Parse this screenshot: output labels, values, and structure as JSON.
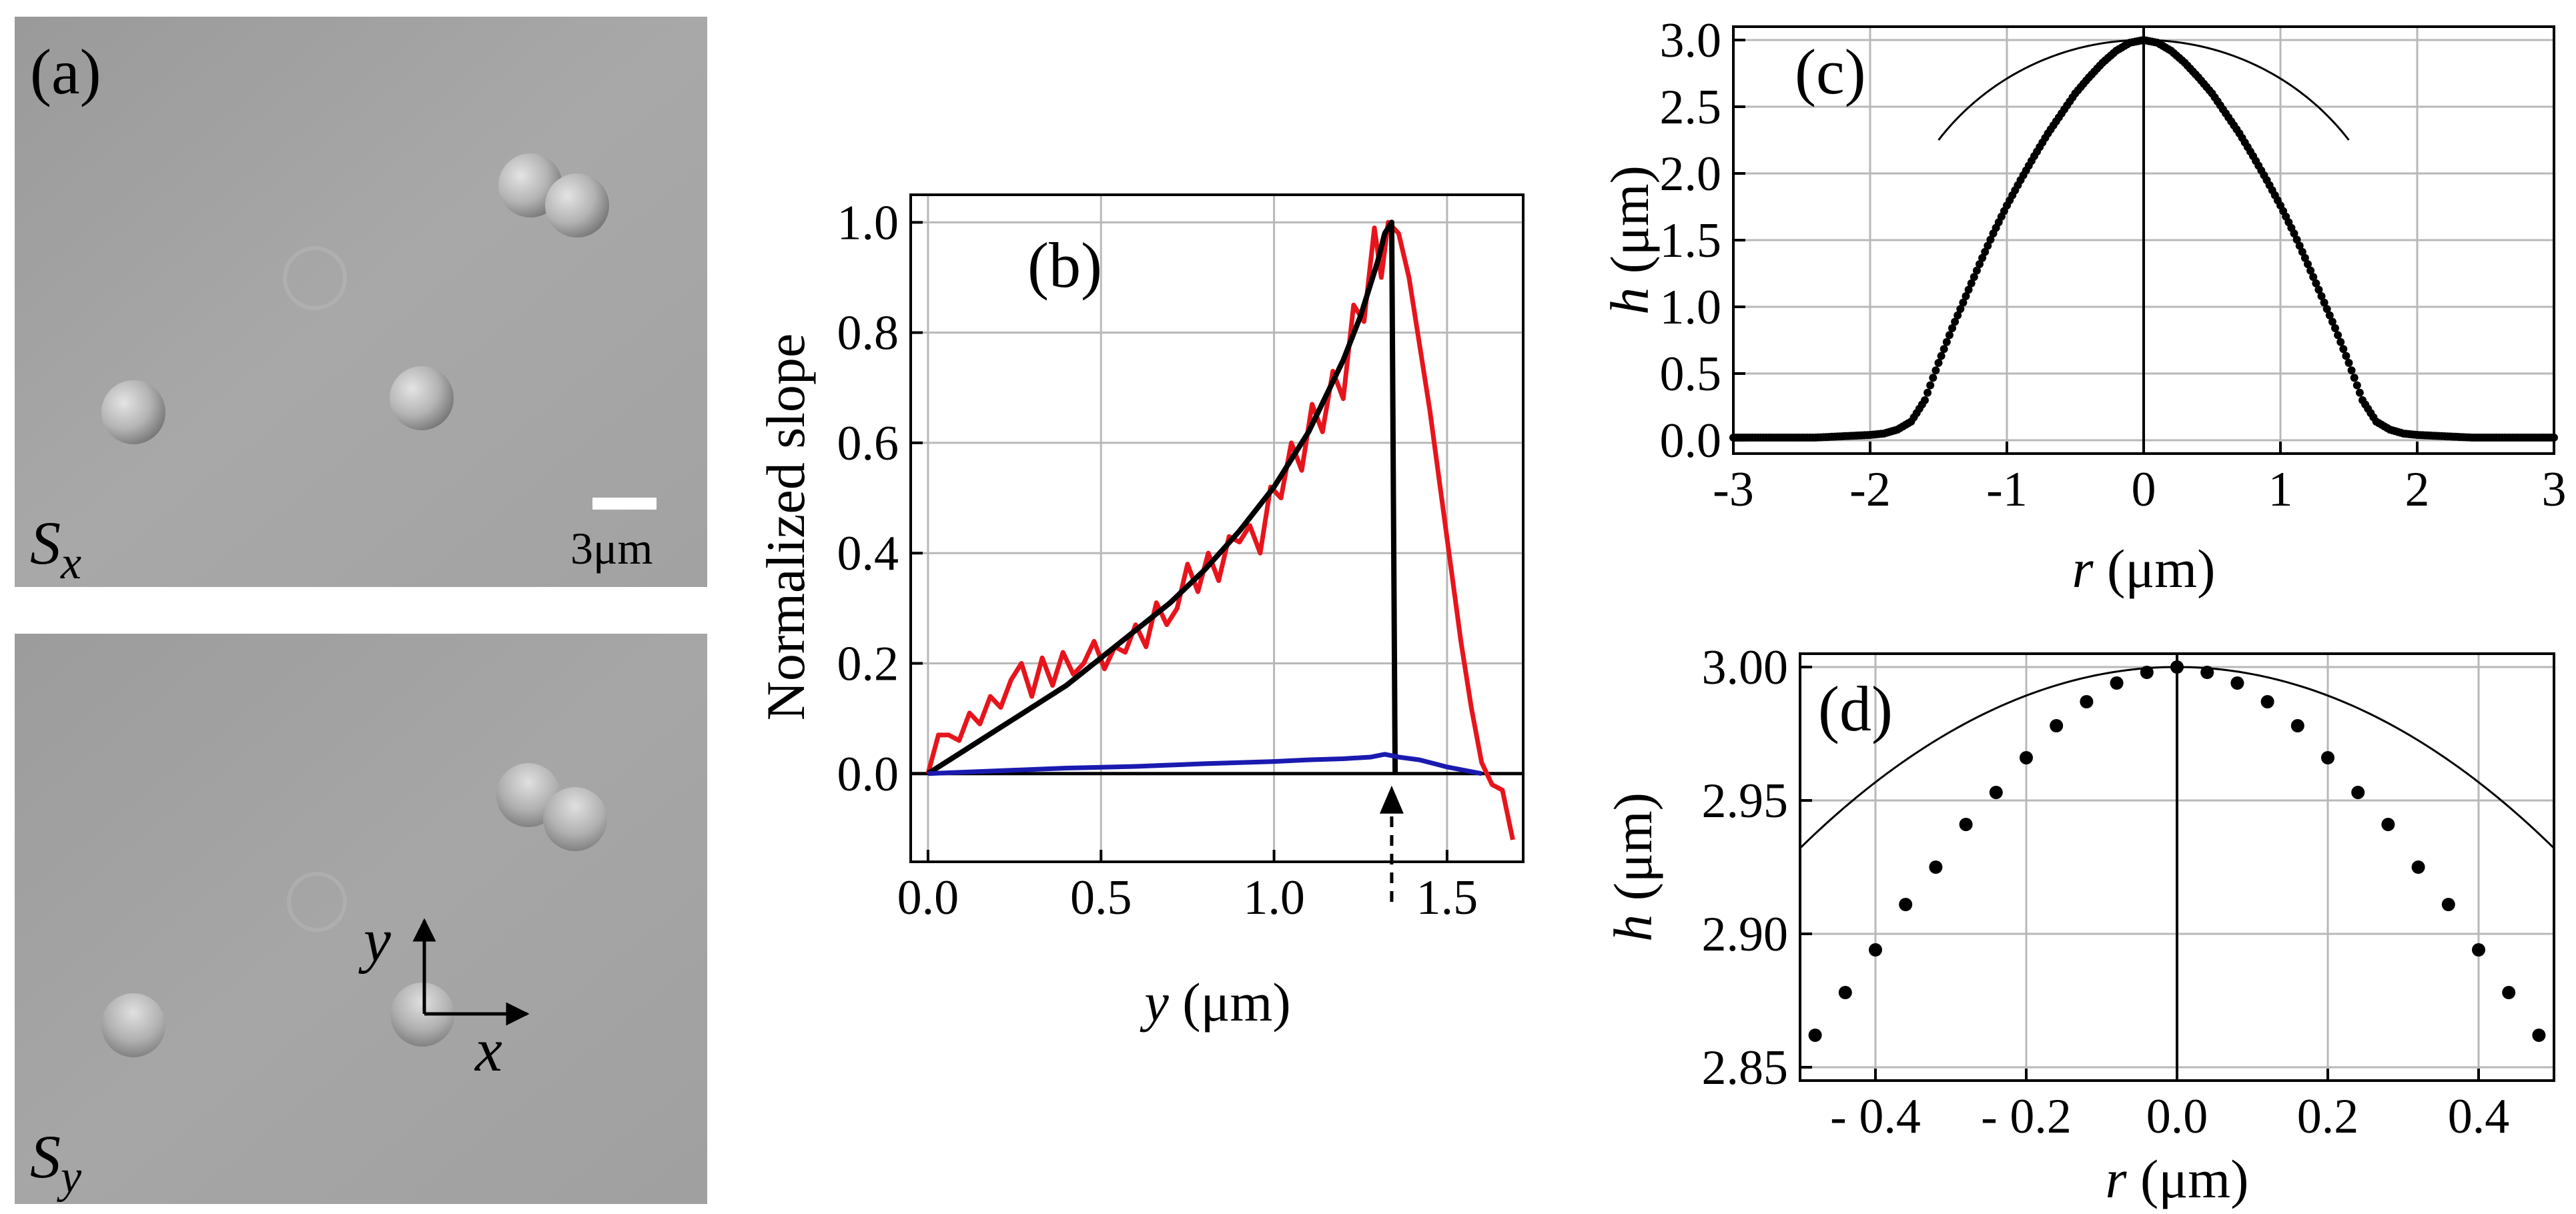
{
  "panel_a": {
    "label": "(a)",
    "sx_label": "S",
    "sx_sub": "x",
    "sy_label": "S",
    "sy_sub": "y",
    "scale_text": "3μm",
    "axis_y": "y",
    "axis_x": "x"
  },
  "panel_b": {
    "label": "(b)",
    "ylabel": "Normalized slope",
    "xlabel_var": "y",
    "xlabel_unit": "(μm)"
  },
  "panel_c": {
    "label": "(c)",
    "ylabel_var": "h",
    "ylabel_unit": "(μm)",
    "xlabel_var": "r",
    "xlabel_unit": "(μm)"
  },
  "panel_d": {
    "label": "(d)",
    "ylabel_var": "h",
    "ylabel_unit": "(μm)",
    "xlabel_var": "r",
    "xlabel_unit": "(μm)"
  },
  "chart_data": [
    {
      "id": "b",
      "type": "line",
      "xlabel": "y (μm)",
      "ylabel": "Normalized slope",
      "xlim": [
        -0.05,
        1.72
      ],
      "ylim": [
        -0.16,
        1.05
      ],
      "xticks": [
        0.0,
        0.5,
        1.0,
        1.5
      ],
      "xtick_labels": [
        "0.0",
        "0.5",
        "1.0",
        "1.5"
      ],
      "yticks": [
        0.0,
        0.2,
        0.4,
        0.6,
        0.8,
        1.0
      ],
      "ytick_labels": [
        "0.0",
        "0.2",
        "0.4",
        "0.6",
        "0.8",
        "1.0"
      ],
      "grid": true,
      "arrow_at_x": 1.34,
      "series": [
        {
          "color": "#e8141c",
          "x": [
            0.0,
            0.03,
            0.06,
            0.09,
            0.12,
            0.15,
            0.18,
            0.21,
            0.24,
            0.27,
            0.3,
            0.33,
            0.36,
            0.39,
            0.42,
            0.45,
            0.48,
            0.51,
            0.54,
            0.57,
            0.6,
            0.63,
            0.66,
            0.69,
            0.72,
            0.75,
            0.78,
            0.81,
            0.84,
            0.87,
            0.9,
            0.93,
            0.96,
            0.99,
            1.02,
            1.05,
            1.08,
            1.11,
            1.14,
            1.17,
            1.2,
            1.23,
            1.26,
            1.29,
            1.31,
            1.33,
            1.36,
            1.39,
            1.42,
            1.45,
            1.48,
            1.51,
            1.54,
            1.57,
            1.6,
            1.63,
            1.66,
            1.69
          ],
          "values": [
            0.0,
            0.07,
            0.07,
            0.06,
            0.11,
            0.09,
            0.14,
            0.12,
            0.17,
            0.2,
            0.14,
            0.21,
            0.16,
            0.22,
            0.18,
            0.2,
            0.24,
            0.19,
            0.23,
            0.22,
            0.27,
            0.23,
            0.31,
            0.27,
            0.3,
            0.38,
            0.33,
            0.4,
            0.35,
            0.43,
            0.42,
            0.45,
            0.4,
            0.52,
            0.5,
            0.6,
            0.55,
            0.67,
            0.62,
            0.73,
            0.68,
            0.85,
            0.82,
            0.99,
            0.9,
            1.0,
            0.98,
            0.9,
            0.78,
            0.66,
            0.52,
            0.38,
            0.24,
            0.12,
            0.02,
            -0.02,
            -0.03,
            -0.12
          ]
        },
        {
          "color": "#000000",
          "x": [
            0.0,
            0.1,
            0.2,
            0.3,
            0.4,
            0.5,
            0.6,
            0.7,
            0.8,
            0.9,
            1.0,
            1.1,
            1.2,
            1.25,
            1.3,
            1.32,
            1.34,
            1.35
          ],
          "values": [
            0.0,
            0.04,
            0.08,
            0.12,
            0.16,
            0.21,
            0.26,
            0.31,
            0.37,
            0.44,
            0.52,
            0.62,
            0.75,
            0.83,
            0.93,
            0.98,
            1.0,
            0.0
          ]
        },
        {
          "color": "#1a1ab0",
          "x": [
            0.0,
            0.2,
            0.4,
            0.6,
            0.8,
            1.0,
            1.1,
            1.2,
            1.28,
            1.32,
            1.36,
            1.42,
            1.5,
            1.6
          ],
          "values": [
            0.0,
            0.005,
            0.01,
            0.013,
            0.018,
            0.022,
            0.025,
            0.027,
            0.03,
            0.035,
            0.03,
            0.025,
            0.012,
            0.0
          ]
        }
      ]
    },
    {
      "id": "c",
      "type": "scatter",
      "xlabel": "r (μm)",
      "ylabel": "h (μm)",
      "xlim": [
        -3.0,
        3.0
      ],
      "ylim": [
        -0.1,
        3.1
      ],
      "xticks": [
        -3,
        -2,
        -1,
        0,
        1,
        2,
        3
      ],
      "xtick_labels": [
        "-3",
        "-2",
        "-1",
        "0",
        "1",
        "2",
        "3"
      ],
      "yticks": [
        0.0,
        0.5,
        1.0,
        1.5,
        2.0,
        2.5,
        3.0
      ],
      "ytick_labels": [
        "0.0",
        "0.5",
        "1.0",
        "1.5",
        "2.0",
        "2.5",
        "3.0"
      ],
      "grid": true,
      "vertical_line_x": 0,
      "points_model": "h = 3.0 * exp(-(r/1.0)^2 * 1.1) style bump: sampled points",
      "points_r": [
        -3.0,
        -2.8,
        -2.6,
        -2.4,
        -2.2,
        -2.0,
        -1.9,
        -1.8,
        -1.7,
        -1.6,
        -1.5,
        -1.4,
        -1.3,
        -1.2,
        -1.1,
        -1.0,
        -0.9,
        -0.8,
        -0.7,
        -0.6,
        -0.5,
        -0.4,
        -0.3,
        -0.2,
        -0.1,
        0.0,
        0.1,
        0.2,
        0.3,
        0.4,
        0.5,
        0.6,
        0.7,
        0.8,
        0.9,
        1.0,
        1.1,
        1.2,
        1.3,
        1.4,
        1.5,
        1.6,
        1.7,
        1.8,
        1.9,
        2.0,
        2.2,
        2.4,
        2.6,
        2.8,
        3.0
      ],
      "points_h": [
        0.02,
        0.02,
        0.02,
        0.02,
        0.03,
        0.04,
        0.05,
        0.08,
        0.14,
        0.3,
        0.58,
        0.84,
        1.08,
        1.32,
        1.55,
        1.76,
        1.95,
        2.13,
        2.3,
        2.45,
        2.6,
        2.72,
        2.83,
        2.92,
        2.98,
        3.0,
        2.98,
        2.92,
        2.83,
        2.72,
        2.6,
        2.45,
        2.3,
        2.13,
        1.95,
        1.76,
        1.55,
        1.32,
        1.08,
        0.84,
        0.58,
        0.3,
        0.14,
        0.08,
        0.05,
        0.04,
        0.03,
        0.02,
        0.02,
        0.02,
        0.02
      ],
      "fit_curve": "sphere cap: h = sqrt(R^2 - r^2) - (R - 3.0), base radius 1.5"
    },
    {
      "id": "d",
      "type": "scatter",
      "xlabel": "r (μm)",
      "ylabel": "h (μm)",
      "xlim": [
        -0.5,
        0.5
      ],
      "ylim": [
        2.845,
        3.005
      ],
      "xticks": [
        -0.4,
        -0.2,
        0.0,
        0.2,
        0.4
      ],
      "xtick_labels": [
        "- 0.4",
        "- 0.2",
        "0.0",
        "0.2",
        "0.4"
      ],
      "yticks": [
        2.85,
        2.9,
        2.95,
        3.0
      ],
      "ytick_labels": [
        "2.85",
        "2.90",
        "2.95",
        "3.00"
      ],
      "grid": true,
      "vertical_line_x": 0,
      "points_r": [
        -0.48,
        -0.44,
        -0.4,
        -0.36,
        -0.32,
        -0.28,
        -0.24,
        -0.2,
        -0.16,
        -0.12,
        -0.08,
        -0.04,
        0.0,
        0.04,
        0.08,
        0.12,
        0.16,
        0.2,
        0.24,
        0.28,
        0.32,
        0.36,
        0.4,
        0.44,
        0.48
      ],
      "points_h": [
        2.862,
        2.878,
        2.894,
        2.911,
        2.925,
        2.941,
        2.953,
        2.966,
        2.978,
        2.987,
        2.994,
        2.998,
        3.0,
        2.998,
        2.994,
        2.987,
        2.978,
        2.966,
        2.953,
        2.941,
        2.925,
        2.911,
        2.894,
        2.878,
        2.862
      ]
    }
  ]
}
